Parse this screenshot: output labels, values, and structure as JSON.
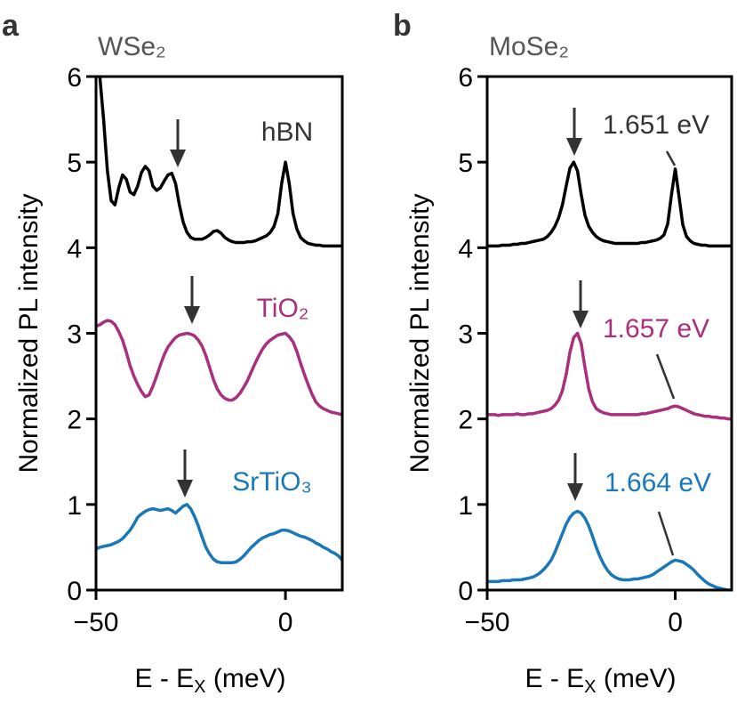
{
  "chart_data": [
    {
      "type": "line",
      "panel": "a",
      "title": "WSe₂",
      "ylabel": "Normalized PL intensity",
      "xlabel": [
        "E - E",
        "X",
        " (meV)"
      ],
      "xlim": [
        -50,
        15
      ],
      "ylim": [
        0,
        6
      ],
      "xticks": [
        {
          "value": -50,
          "label": "−50"
        },
        0
      ],
      "yticks": [
        0,
        1,
        2,
        3,
        4,
        5,
        6
      ],
      "x": [
        -50,
        -49,
        -48,
        -47,
        -46,
        -45,
        -44,
        -43,
        -42,
        -41,
        -40,
        -39,
        -38,
        -37,
        -36,
        -35,
        -34,
        -33,
        -32,
        -31,
        -30,
        -29,
        -28,
        -27,
        -26,
        -25,
        -24,
        -23,
        -22,
        -21,
        -20,
        -19,
        -18,
        -17,
        -16,
        -15,
        -14,
        -13,
        -12,
        -11,
        -10,
        -9,
        -8,
        -7,
        -6,
        -5,
        -4,
        -3,
        -2,
        -1,
        0,
        1,
        2,
        3,
        4,
        5,
        6,
        7,
        8,
        9,
        10,
        11,
        12,
        13,
        14,
        15
      ],
      "series": [
        {
          "name": "hBN",
          "color": "#000000",
          "values": [
            null,
            6.0,
            5.5,
            4.9,
            4.55,
            4.5,
            4.7,
            4.85,
            4.8,
            4.65,
            4.62,
            4.72,
            4.88,
            4.95,
            4.9,
            4.72,
            4.67,
            4.7,
            4.78,
            4.85,
            4.87,
            4.75,
            4.5,
            4.3,
            4.18,
            4.12,
            4.1,
            4.1,
            4.1,
            4.12,
            4.15,
            4.19,
            4.2,
            4.17,
            4.12,
            4.09,
            4.07,
            4.06,
            4.06,
            4.06,
            4.07,
            4.07,
            4.08,
            4.1,
            4.12,
            4.14,
            4.18,
            4.25,
            4.4,
            4.75,
            5.0,
            4.75,
            4.4,
            4.22,
            4.12,
            4.08,
            4.05,
            4.04,
            4.03,
            4.03,
            4.02,
            4.02,
            4.02,
            4.02,
            4.02,
            4.02
          ]
        },
        {
          "name": "TiO₂",
          "color": "#a8307c",
          "values": [
            3.08,
            3.1,
            3.13,
            3.15,
            3.14,
            3.1,
            3.02,
            2.92,
            2.78,
            2.62,
            2.5,
            2.4,
            2.32,
            2.26,
            2.28,
            2.38,
            2.5,
            2.63,
            2.75,
            2.84,
            2.9,
            2.95,
            2.98,
            2.99,
            3.0,
            2.99,
            2.97,
            2.92,
            2.85,
            2.74,
            2.6,
            2.46,
            2.35,
            2.28,
            2.24,
            2.22,
            2.22,
            2.25,
            2.3,
            2.37,
            2.45,
            2.55,
            2.65,
            2.74,
            2.82,
            2.88,
            2.92,
            2.95,
            2.98,
            2.99,
            3.0,
            2.96,
            2.9,
            2.79,
            2.65,
            2.52,
            2.4,
            2.29,
            2.2,
            2.15,
            2.12,
            2.1,
            2.08,
            2.07,
            2.06,
            2.05
          ]
        },
        {
          "name": "SrTiO₃",
          "color": "#1a78b9",
          "values": [
            0.48,
            0.5,
            0.51,
            0.52,
            0.53,
            0.55,
            0.57,
            0.6,
            0.65,
            0.7,
            0.77,
            0.85,
            0.89,
            0.92,
            0.94,
            0.95,
            0.94,
            0.93,
            0.94,
            0.95,
            0.93,
            0.9,
            0.94,
            0.98,
            1.0,
            0.95,
            0.86,
            0.75,
            0.62,
            0.5,
            0.42,
            0.36,
            0.33,
            0.32,
            0.32,
            0.32,
            0.32,
            0.33,
            0.36,
            0.4,
            0.45,
            0.5,
            0.54,
            0.58,
            0.61,
            0.63,
            0.65,
            0.66,
            0.68,
            0.7,
            0.7,
            0.69,
            0.67,
            0.65,
            0.63,
            0.62,
            0.6,
            0.58,
            0.55,
            0.53,
            0.5,
            0.48,
            0.45,
            0.43,
            0.4,
            0.35
          ]
        }
      ]
    },
    {
      "type": "line",
      "panel": "b",
      "title": "MoSe₂",
      "ylabel": "Normalized PL intensity",
      "xlabel": [
        "E - E",
        "X",
        " (meV)"
      ],
      "xlim": [
        -50,
        15
      ],
      "ylim": [
        0,
        6
      ],
      "xticks": [
        {
          "value": -50,
          "label": "−50"
        },
        0
      ],
      "yticks": [
        0,
        1,
        2,
        3,
        4,
        5,
        6
      ],
      "x": [
        -50,
        -49,
        -48,
        -47,
        -46,
        -45,
        -44,
        -43,
        -42,
        -41,
        -40,
        -39,
        -38,
        -37,
        -36,
        -35,
        -34,
        -33,
        -32,
        -31,
        -30,
        -29,
        -28,
        -27,
        -26,
        -25,
        -24,
        -23,
        -22,
        -21,
        -20,
        -19,
        -18,
        -17,
        -16,
        -15,
        -14,
        -13,
        -12,
        -11,
        -10,
        -9,
        -8,
        -7,
        -6,
        -5,
        -4,
        -3,
        -2,
        -1,
        0,
        1,
        2,
        3,
        4,
        5,
        6,
        7,
        8,
        9,
        10,
        11,
        12,
        13,
        14,
        15
      ],
      "series": [
        {
          "name": "1.651 eV",
          "color": "#000000",
          "values": [
            4.02,
            4.02,
            4.02,
            4.02,
            4.03,
            4.03,
            4.03,
            4.04,
            4.04,
            4.05,
            4.05,
            4.06,
            4.07,
            4.08,
            4.09,
            4.1,
            4.13,
            4.18,
            4.25,
            4.35,
            4.5,
            4.72,
            4.93,
            5.0,
            4.9,
            4.62,
            4.38,
            4.25,
            4.18,
            4.13,
            4.1,
            4.08,
            4.07,
            4.06,
            4.05,
            4.05,
            4.05,
            4.05,
            4.05,
            4.05,
            4.05,
            4.06,
            4.06,
            4.07,
            4.08,
            4.09,
            4.11,
            4.15,
            4.28,
            4.62,
            4.92,
            4.6,
            4.27,
            4.13,
            4.08,
            4.05,
            4.04,
            4.03,
            4.03,
            4.02,
            4.02,
            4.02,
            4.02,
            4.02,
            4.02,
            4.02
          ]
        },
        {
          "name": "1.657 eV",
          "color": "#a8307c",
          "values": [
            2.05,
            2.05,
            2.05,
            2.04,
            2.05,
            2.05,
            2.05,
            2.05,
            2.06,
            2.05,
            2.05,
            2.06,
            2.06,
            2.07,
            2.08,
            2.09,
            2.1,
            2.12,
            2.16,
            2.22,
            2.33,
            2.52,
            2.78,
            2.95,
            3.0,
            2.88,
            2.6,
            2.35,
            2.2,
            2.12,
            2.09,
            2.07,
            2.06,
            2.05,
            2.05,
            2.05,
            2.05,
            2.05,
            2.05,
            2.05,
            2.05,
            2.06,
            2.06,
            2.07,
            2.08,
            2.09,
            2.1,
            2.11,
            2.12,
            2.14,
            2.15,
            2.14,
            2.12,
            2.1,
            2.08,
            2.06,
            2.05,
            2.04,
            2.03,
            2.03,
            2.02,
            2.02,
            2.01,
            2.01,
            2.0,
            2.0
          ]
        },
        {
          "name": "1.664 eV",
          "color": "#1a78b9",
          "values": [
            0.1,
            0.1,
            0.1,
            0.1,
            0.11,
            0.11,
            0.11,
            0.12,
            0.12,
            0.12,
            0.13,
            0.14,
            0.15,
            0.17,
            0.2,
            0.24,
            0.29,
            0.35,
            0.44,
            0.55,
            0.66,
            0.77,
            0.85,
            0.9,
            0.92,
            0.9,
            0.84,
            0.75,
            0.63,
            0.5,
            0.39,
            0.3,
            0.23,
            0.18,
            0.15,
            0.13,
            0.12,
            0.12,
            0.12,
            0.13,
            0.13,
            0.14,
            0.15,
            0.16,
            0.18,
            0.21,
            0.24,
            0.27,
            0.3,
            0.33,
            0.35,
            0.34,
            0.33,
            0.3,
            0.27,
            0.23,
            0.18,
            0.14,
            0.1,
            0.07,
            0.05,
            0.03,
            0.02,
            0.01,
            0.0,
            0.0
          ]
        }
      ]
    }
  ]
}
